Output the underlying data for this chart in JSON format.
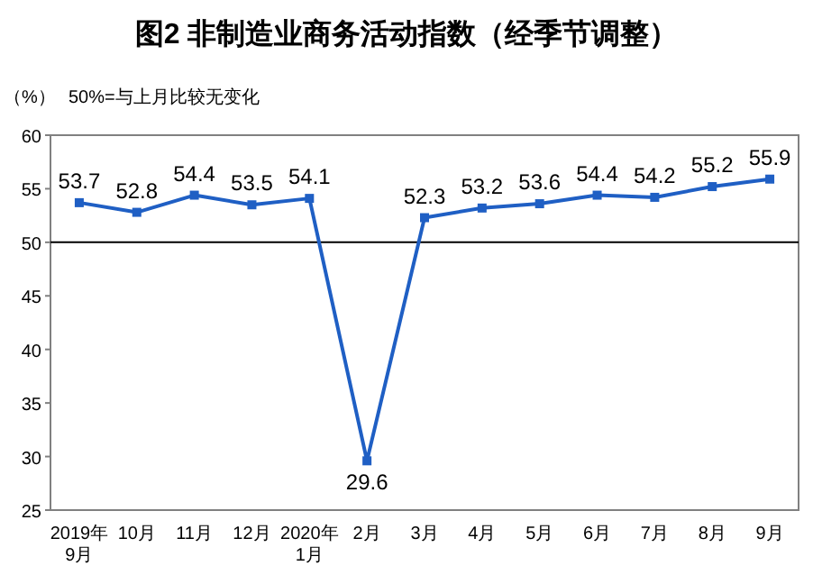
{
  "chart_data": {
    "type": "line",
    "title": "图2 非制造业商务活动指数（经季节调整）",
    "ylabel": "（%）",
    "annotations": [
      "50%=与上月比较无变化"
    ],
    "categories": [
      "2019年\n9月",
      "10月",
      "11月",
      "12月",
      "2020年\n1月",
      "2月",
      "3月",
      "4月",
      "5月",
      "6月",
      "7月",
      "8月",
      "9月"
    ],
    "series": [
      {
        "color": "#1f5fc4",
        "values": [
          53.7,
          52.8,
          54.4,
          53.5,
          54.1,
          29.6,
          52.3,
          53.2,
          53.6,
          54.4,
          54.2,
          55.2,
          55.9
        ]
      }
    ],
    "ylim": [
      25,
      60
    ],
    "yticks": [
      25,
      30,
      35,
      40,
      45,
      50,
      55,
      60
    ],
    "ref_lines": [
      {
        "axis": "y",
        "value": 50,
        "color": "#000000"
      }
    ],
    "marker": "square",
    "data_labels": true,
    "grid": false
  }
}
